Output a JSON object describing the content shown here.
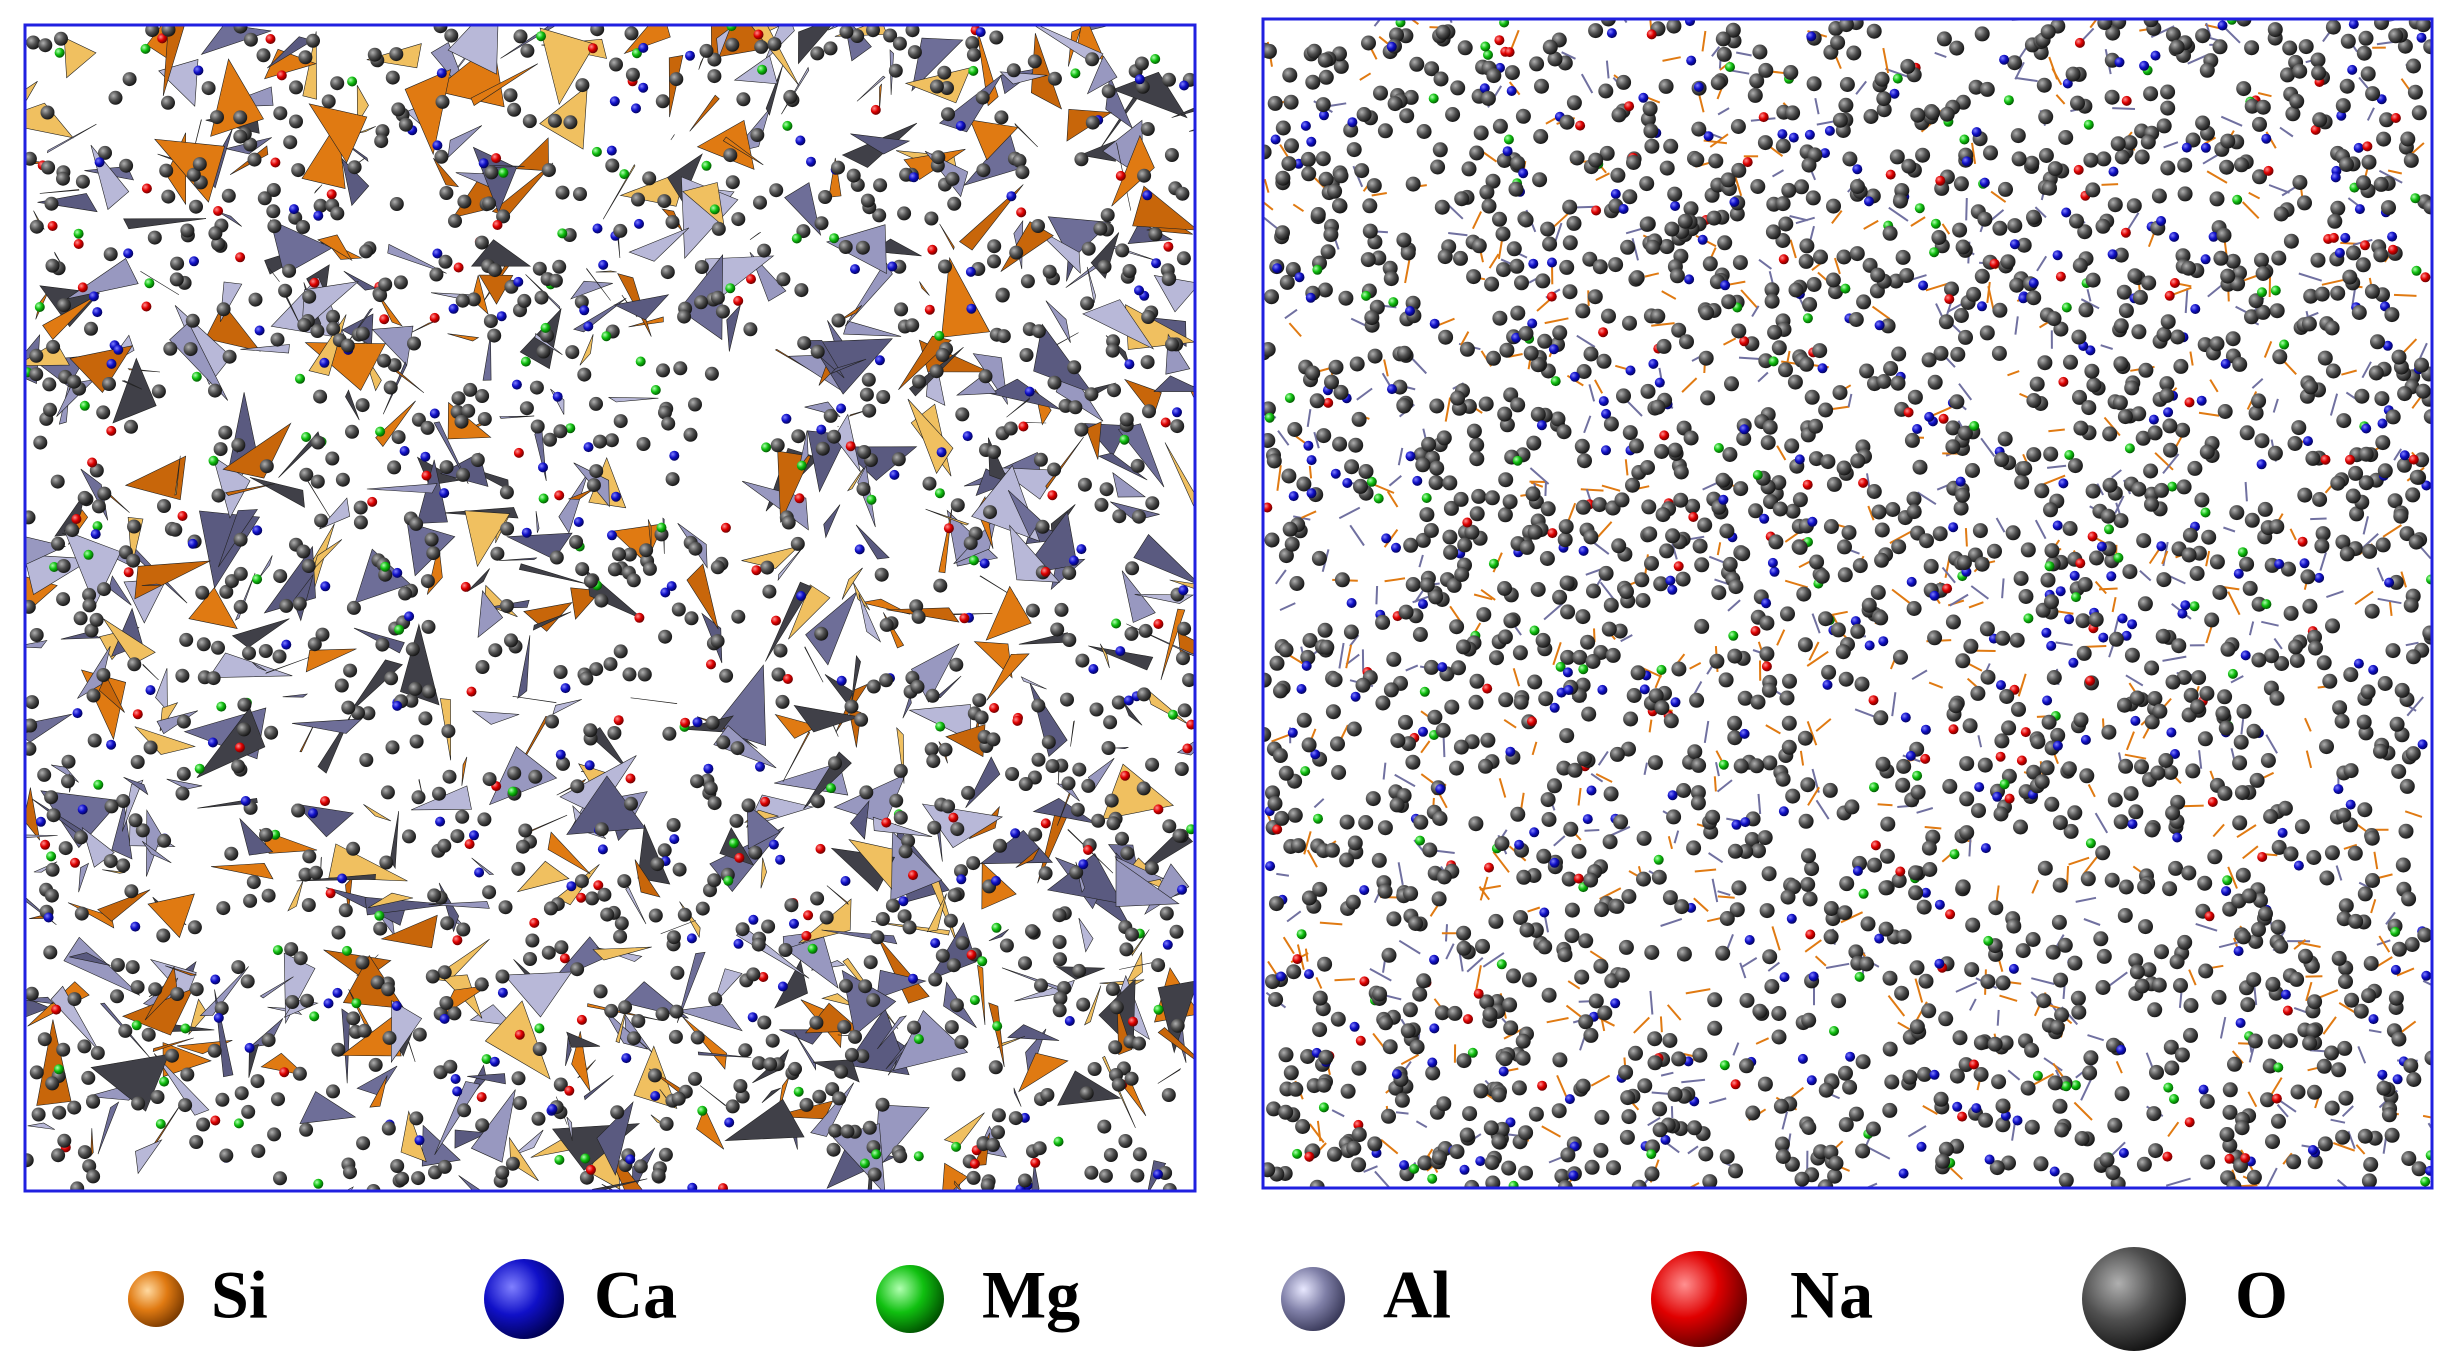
{
  "legend": {
    "items": [
      {
        "label": "Si"
      },
      {
        "label": "Ca"
      },
      {
        "label": "Mg"
      },
      {
        "label": "Al"
      },
      {
        "label": "Na"
      },
      {
        "label": "O"
      }
    ]
  }
}
